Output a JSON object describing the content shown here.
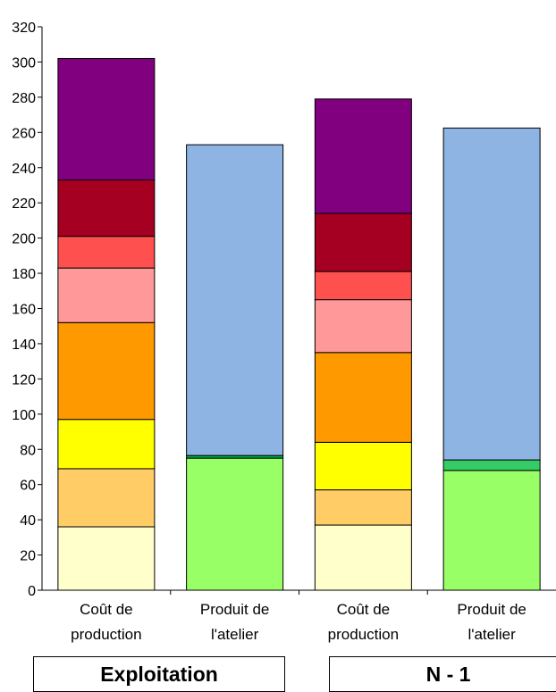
{
  "chart_data": {
    "type": "bar",
    "stacked": true,
    "ylim": [
      0,
      320
    ],
    "yticks": [
      0,
      20,
      40,
      60,
      80,
      100,
      120,
      140,
      160,
      180,
      200,
      220,
      240,
      260,
      280,
      300,
      320
    ],
    "grid": false,
    "categories": [
      "Coût de production",
      "Produit de l'atelier",
      "Coût de production",
      "Produit de l'atelier"
    ],
    "category_lines": [
      [
        "Coût de",
        "production"
      ],
      [
        "Produit de",
        "l'atelier"
      ],
      [
        "Coût de",
        "production"
      ],
      [
        "Produit de",
        "l'atelier"
      ]
    ],
    "groups": [
      {
        "label": "Exploitation",
        "categories": [
          0,
          1
        ]
      },
      {
        "label": "N - 1",
        "categories": [
          2,
          3
        ]
      }
    ],
    "bars": [
      {
        "segments": [
          {
            "value": 36,
            "color": "#FFFFCC"
          },
          {
            "value": 33,
            "color": "#FFCC66"
          },
          {
            "value": 28,
            "color": "#FFFF00"
          },
          {
            "value": 55,
            "color": "#FF9900"
          },
          {
            "value": 31,
            "color": "#FF9999"
          },
          {
            "value": 18,
            "color": "#FF5050"
          },
          {
            "value": 32,
            "color": "#A50021"
          },
          {
            "value": 69,
            "color": "#800080"
          }
        ]
      },
      {
        "segments": [
          {
            "value": 75,
            "color": "#99FF66"
          },
          {
            "value": 1.5,
            "color": "#00B050"
          },
          {
            "value": 176.5,
            "color": "#8DB4E2"
          }
        ]
      },
      {
        "segments": [
          {
            "value": 37,
            "color": "#FFFFCC"
          },
          {
            "value": 20,
            "color": "#FFCC66"
          },
          {
            "value": 27,
            "color": "#FFFF00"
          },
          {
            "value": 51,
            "color": "#FF9900"
          },
          {
            "value": 30,
            "color": "#FF9999"
          },
          {
            "value": 16,
            "color": "#FF5050"
          },
          {
            "value": 33,
            "color": "#A50021"
          },
          {
            "value": 65,
            "color": "#800080"
          }
        ]
      },
      {
        "segments": [
          {
            "value": 68,
            "color": "#99FF66"
          },
          {
            "value": 6,
            "color": "#33CC66"
          },
          {
            "value": 188.5,
            "color": "#8DB4E2"
          }
        ]
      }
    ]
  }
}
